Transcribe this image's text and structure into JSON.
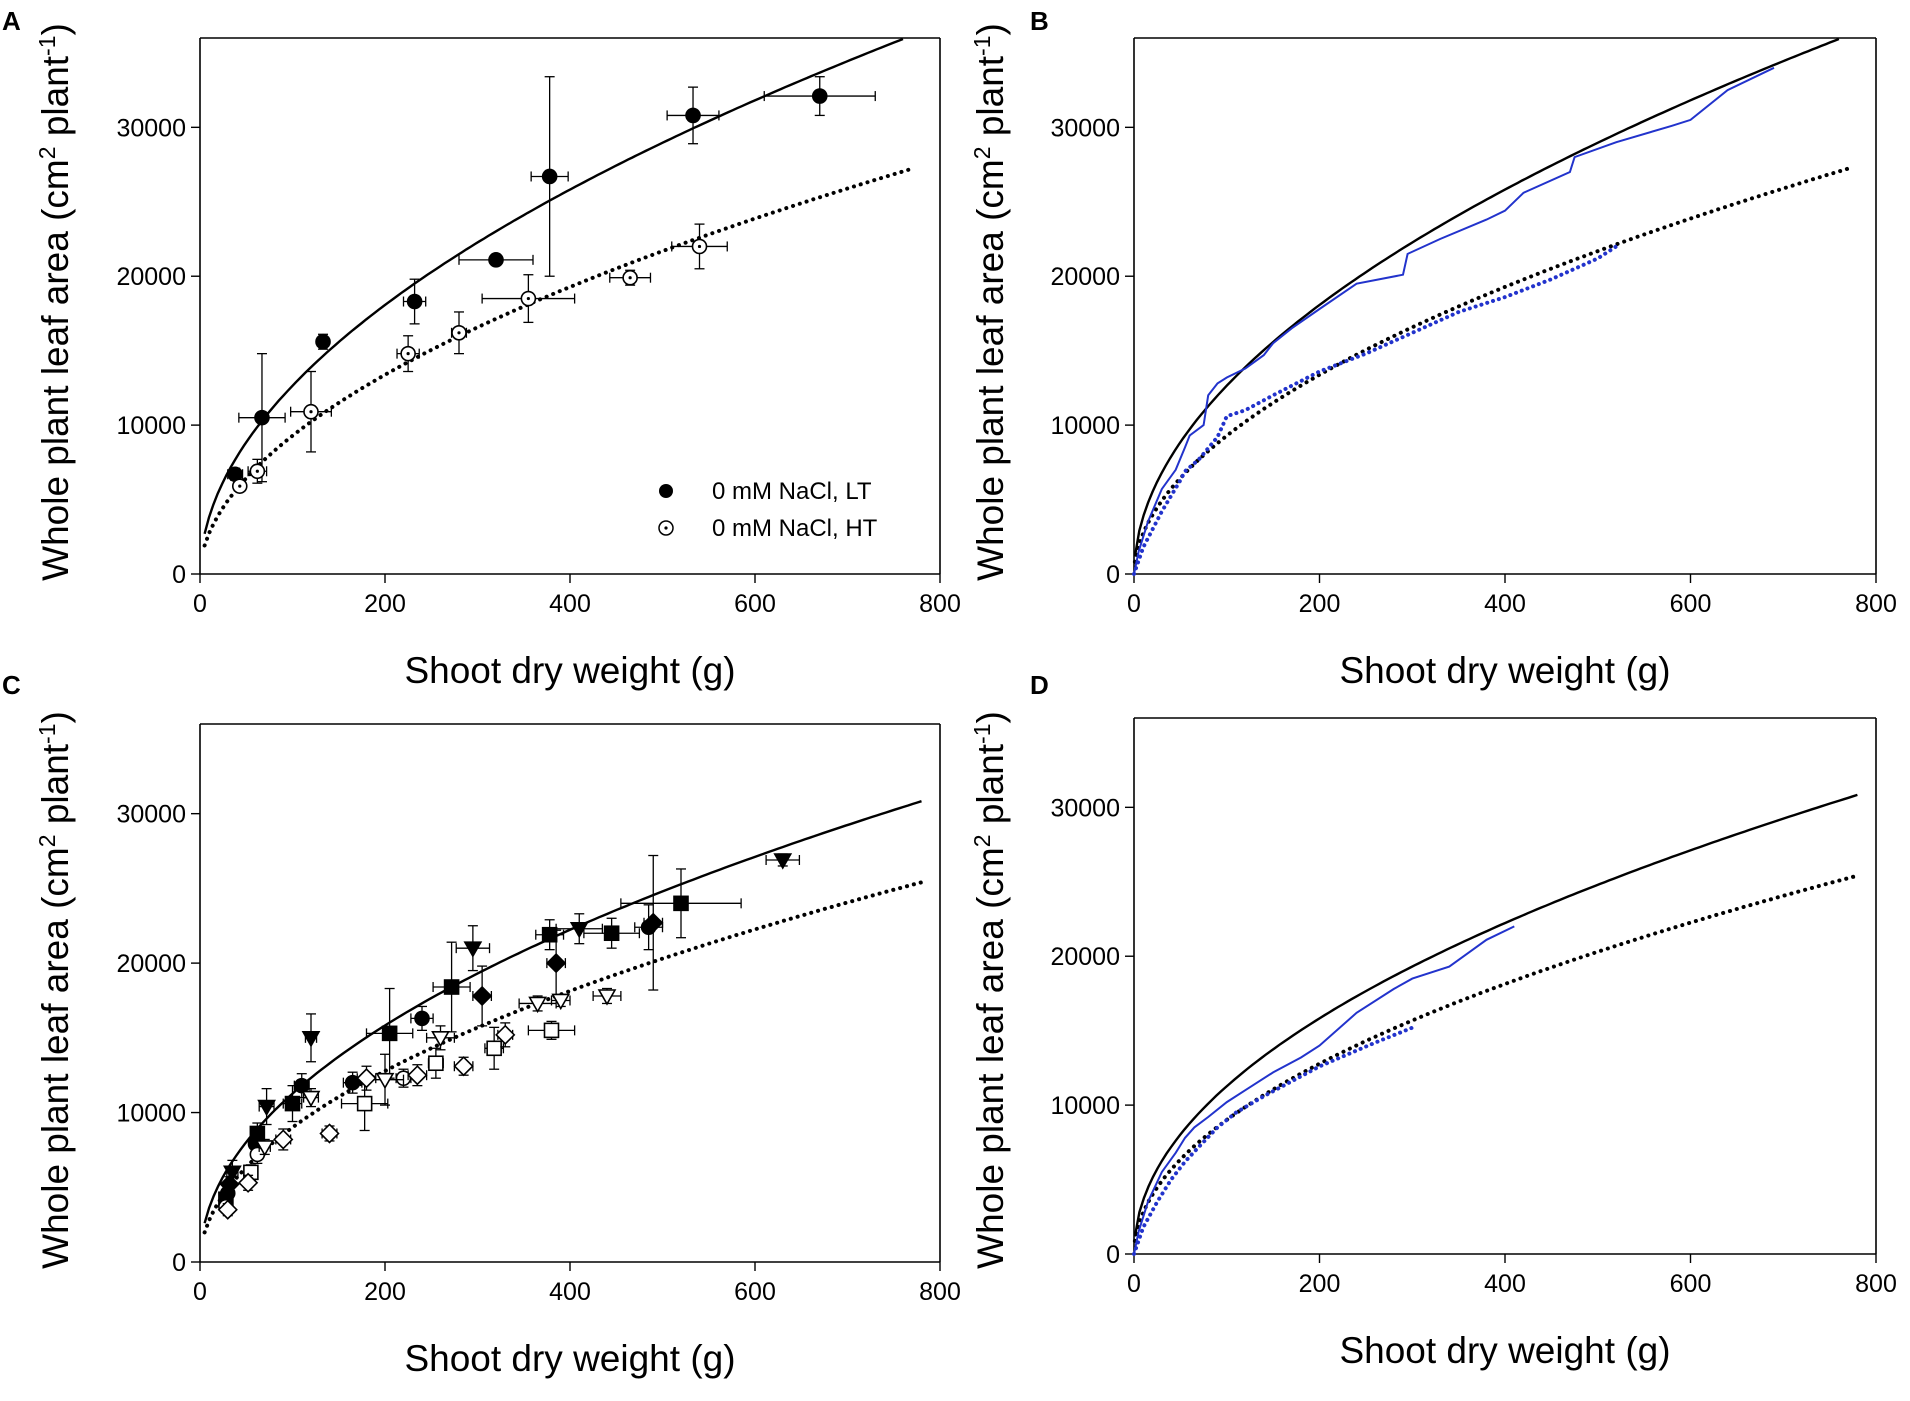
{
  "figure": {
    "panels": [
      "A",
      "B",
      "C",
      "D"
    ],
    "x_axis_label": "Shoot dry weight (g)",
    "y_axis_label_main": "Whole plant leaf area (cm",
    "y_axis_label_sup1": "2",
    "y_axis_label_mid": " plant",
    "y_axis_label_sup2": "-1",
    "y_axis_label_end": ")",
    "colors": {
      "black": "#000000",
      "blue": "#2233cc"
    }
  },
  "chart_data": [
    {
      "panel": "A",
      "type": "scatter",
      "xlabel": "Shoot dry weight (g)",
      "ylabel": "Whole plant leaf area (cm2 plant-1)",
      "xlim": [
        0,
        800
      ],
      "ylim": [
        0,
        36000
      ],
      "xticks": [
        0,
        200,
        400,
        600,
        800
      ],
      "yticks": [
        0,
        10000,
        20000,
        30000
      ],
      "legend_position": "bottom-right",
      "legend": [
        {
          "label": "0 mM NaCl, LT",
          "marker": "filled-circle"
        },
        {
          "label": "0 mM NaCl, HT",
          "marker": "open-circle-dot"
        }
      ],
      "series": [
        {
          "name": "0 mM NaCl, LT",
          "marker": "filled-circle",
          "points": [
            {
              "x": 38,
              "y": 6700,
              "xerr": 8,
              "yerr": 400
            },
            {
              "x": 67,
              "y": 10500,
              "xerr": 25,
              "yerr": 4300
            },
            {
              "x": 133,
              "y": 15600,
              "xerr": 6,
              "yerr": 500
            },
            {
              "x": 232,
              "y": 18300,
              "xerr": 12,
              "yerr": 1500
            },
            {
              "x": 320,
              "y": 21100,
              "xerr": 40,
              "yerr": 300
            },
            {
              "x": 378,
              "y": 26700,
              "xerr": 20,
              "yerr": 6700
            },
            {
              "x": 533,
              "y": 30800,
              "xerr": 28,
              "yerr": 1900
            },
            {
              "x": 670,
              "y": 32100,
              "xerr": 60,
              "yerr": 1300
            }
          ]
        },
        {
          "name": "0 mM NaCl, HT",
          "marker": "open-circle-dot",
          "points": [
            {
              "x": 43,
              "y": 5900,
              "xerr": 6,
              "yerr": 300
            },
            {
              "x": 62,
              "y": 6900,
              "xerr": 10,
              "yerr": 800
            },
            {
              "x": 120,
              "y": 10900,
              "xerr": 22,
              "yerr": 2700
            },
            {
              "x": 225,
              "y": 14800,
              "xerr": 12,
              "yerr": 1200
            },
            {
              "x": 280,
              "y": 16200,
              "xerr": 8,
              "yerr": 1400
            },
            {
              "x": 355,
              "y": 18500,
              "xerr": 50,
              "yerr": 1600
            },
            {
              "x": 465,
              "y": 19900,
              "xerr": 22,
              "yerr": 500
            },
            {
              "x": 540,
              "y": 22000,
              "xerr": 30,
              "yerr": 1500
            }
          ]
        }
      ],
      "curves": [
        {
          "name": "LT fit",
          "style": "solid",
          "color": "black",
          "a": 1180,
          "b": 0.515,
          "x_start": 5,
          "x_end": 760
        },
        {
          "name": "HT fit",
          "style": "dotted",
          "color": "black",
          "a": 820,
          "b": 0.527,
          "x_start": 5,
          "x_end": 770
        }
      ]
    },
    {
      "panel": "B",
      "type": "line",
      "xlabel": "Shoot dry weight (g)",
      "ylabel": "Whole plant leaf area (cm2 plant-1)",
      "xlim": [
        0,
        800
      ],
      "ylim": [
        0,
        36000
      ],
      "xticks": [
        0,
        200,
        400,
        600,
        800
      ],
      "yticks": [
        0,
        10000,
        20000,
        30000
      ],
      "curves": [
        {
          "name": "LT fit",
          "style": "solid",
          "color": "black",
          "a": 1180,
          "b": 0.515,
          "x_start": 1,
          "x_end": 760
        },
        {
          "name": "HT fit",
          "style": "dotted",
          "color": "black",
          "a": 820,
          "b": 0.527,
          "x_start": 1,
          "x_end": 775
        }
      ],
      "traces": [
        {
          "name": "simulated LT",
          "style": "solid",
          "color": "blue",
          "x": [
            0,
            5,
            15,
            30,
            45,
            55,
            60,
            75,
            80,
            90,
            100,
            120,
            140,
            150,
            170,
            200,
            240,
            290,
            295,
            330,
            380,
            400,
            420,
            470,
            475,
            520,
            580,
            600,
            640,
            690
          ],
          "y": [
            0,
            1500,
            3500,
            5700,
            7000,
            8500,
            9300,
            10000,
            12000,
            12800,
            13200,
            13800,
            14700,
            15500,
            16500,
            17800,
            19500,
            20100,
            21500,
            22500,
            23800,
            24400,
            25600,
            27000,
            28000,
            29000,
            30100,
            30500,
            32500,
            34000
          ]
        },
        {
          "name": "simulated HT",
          "style": "dotted",
          "color": "blue",
          "x": [
            0,
            10,
            30,
            50,
            55,
            70,
            90,
            100,
            120,
            150,
            200,
            250,
            300,
            350,
            400,
            450,
            500,
            520
          ],
          "y": [
            0,
            1800,
            4200,
            6300,
            6900,
            7700,
            9200,
            10600,
            11000,
            12000,
            13600,
            14800,
            16200,
            17600,
            18600,
            19800,
            21200,
            22000
          ]
        }
      ]
    },
    {
      "panel": "C",
      "type": "scatter",
      "xlabel": "Shoot dry weight (g)",
      "ylabel": "Whole plant leaf area (cm2 plant-1)",
      "xlim": [
        0,
        800
      ],
      "ylim": [
        0,
        36000
      ],
      "xticks": [
        0,
        200,
        400,
        600,
        800
      ],
      "yticks": [
        0,
        10000,
        20000,
        30000
      ],
      "series": [
        {
          "name": "filled circles",
          "marker": "filled-circle",
          "points": [
            {
              "x": 30,
              "y": 4600,
              "xerr": 4,
              "yerr": 500
            },
            {
              "x": 60,
              "y": 7900,
              "xerr": 5,
              "yerr": 600
            },
            {
              "x": 110,
              "y": 11800,
              "xerr": 8,
              "yerr": 800
            },
            {
              "x": 165,
              "y": 12000,
              "xerr": 10,
              "yerr": 700
            },
            {
              "x": 240,
              "y": 16300,
              "xerr": 12,
              "yerr": 800
            },
            {
              "x": 485,
              "y": 22400,
              "xerr": 15,
              "yerr": 1500
            }
          ]
        },
        {
          "name": "filled squares",
          "marker": "filled-square",
          "points": [
            {
              "x": 28,
              "y": 4200,
              "xerr": 4,
              "yerr": 500
            },
            {
              "x": 62,
              "y": 8600,
              "xerr": 6,
              "yerr": 700
            },
            {
              "x": 100,
              "y": 10600,
              "xerr": 10,
              "yerr": 1200
            },
            {
              "x": 205,
              "y": 15300,
              "xerr": 25,
              "yerr": 3000
            },
            {
              "x": 272,
              "y": 18400,
              "xerr": 20,
              "yerr": 3000
            },
            {
              "x": 378,
              "y": 21900,
              "xerr": 15,
              "yerr": 1000
            },
            {
              "x": 445,
              "y": 22000,
              "xerr": 30,
              "yerr": 1000
            },
            {
              "x": 520,
              "y": 24000,
              "xerr": 65,
              "yerr": 2300
            }
          ]
        },
        {
          "name": "filled triangles down",
          "marker": "filled-triangle-down",
          "points": [
            {
              "x": 35,
              "y": 6000,
              "xerr": 6,
              "yerr": 800
            },
            {
              "x": 72,
              "y": 10400,
              "xerr": 8,
              "yerr": 1200
            },
            {
              "x": 120,
              "y": 15000,
              "xerr": 6,
              "yerr": 1600
            },
            {
              "x": 295,
              "y": 21000,
              "xerr": 18,
              "yerr": 1500
            },
            {
              "x": 410,
              "y": 22300,
              "xerr": 25,
              "yerr": 1000
            },
            {
              "x": 630,
              "y": 26900,
              "xerr": 18,
              "yerr": 400
            }
          ]
        },
        {
          "name": "filled diamonds",
          "marker": "filled-diamond",
          "points": [
            {
              "x": 32,
              "y": 5200,
              "xerr": 4,
              "yerr": 500
            },
            {
              "x": 305,
              "y": 17800,
              "xerr": 10,
              "yerr": 2000
            },
            {
              "x": 385,
              "y": 20000,
              "xerr": 10,
              "yerr": 2200
            },
            {
              "x": 490,
              "y": 22700,
              "xerr": 10,
              "yerr": 4500
            }
          ]
        },
        {
          "name": "open circles",
          "marker": "open-circle",
          "points": [
            {
              "x": 28,
              "y": 3700,
              "xerr": 4,
              "yerr": 400
            },
            {
              "x": 62,
              "y": 7200,
              "xerr": 6,
              "yerr": 600
            },
            {
              "x": 220,
              "y": 12300,
              "xerr": 8,
              "yerr": 600
            }
          ]
        },
        {
          "name": "open squares",
          "marker": "open-square",
          "points": [
            {
              "x": 55,
              "y": 6000,
              "xerr": 5,
              "yerr": 500
            },
            {
              "x": 178,
              "y": 10600,
              "xerr": 25,
              "yerr": 1800
            },
            {
              "x": 255,
              "y": 13300,
              "xerr": 8,
              "yerr": 1000
            },
            {
              "x": 318,
              "y": 14300,
              "xerr": 10,
              "yerr": 1400
            },
            {
              "x": 380,
              "y": 15500,
              "xerr": 25,
              "yerr": 600
            }
          ]
        },
        {
          "name": "open triangles down",
          "marker": "open-triangle-down",
          "points": [
            {
              "x": 70,
              "y": 7700,
              "xerr": 6,
              "yerr": 500
            },
            {
              "x": 120,
              "y": 11000,
              "xerr": 8,
              "yerr": 600
            },
            {
              "x": 200,
              "y": 12200,
              "xerr": 20,
              "yerr": 1700
            },
            {
              "x": 260,
              "y": 15000,
              "xerr": 15,
              "yerr": 800
            },
            {
              "x": 365,
              "y": 17300,
              "xerr": 20,
              "yerr": 500
            },
            {
              "x": 390,
              "y": 17500,
              "xerr": 10,
              "yerr": 400
            },
            {
              "x": 440,
              "y": 17800,
              "xerr": 15,
              "yerr": 500
            }
          ]
        },
        {
          "name": "open diamonds",
          "marker": "open-diamond",
          "points": [
            {
              "x": 30,
              "y": 3500,
              "xerr": 4,
              "yerr": 400
            },
            {
              "x": 52,
              "y": 5300,
              "xerr": 5,
              "yerr": 500
            },
            {
              "x": 90,
              "y": 8200,
              "xerr": 8,
              "yerr": 700
            },
            {
              "x": 140,
              "y": 8600,
              "xerr": 8,
              "yerr": 500
            },
            {
              "x": 180,
              "y": 12300,
              "xerr": 10,
              "yerr": 800
            },
            {
              "x": 235,
              "y": 12500,
              "xerr": 10,
              "yerr": 700
            },
            {
              "x": 285,
              "y": 13100,
              "xerr": 10,
              "yerr": 600
            },
            {
              "x": 330,
              "y": 15200,
              "xerr": 8,
              "yerr": 800
            }
          ]
        }
      ],
      "curves": [
        {
          "name": "filled fit",
          "style": "solid",
          "color": "black",
          "a": 1180,
          "b": 0.49,
          "x_start": 5,
          "x_end": 780
        },
        {
          "name": "open fit",
          "style": "dotted",
          "color": "black",
          "a": 880,
          "b": 0.505,
          "x_start": 5,
          "x_end": 780
        }
      ]
    },
    {
      "panel": "D",
      "type": "line",
      "xlabel": "Shoot dry weight (g)",
      "ylabel": "Whole plant leaf area (cm2 plant-1)",
      "xlim": [
        0,
        800
      ],
      "ylim": [
        0,
        36000
      ],
      "xticks": [
        0,
        200,
        400,
        600,
        800
      ],
      "yticks": [
        0,
        10000,
        20000,
        30000
      ],
      "curves": [
        {
          "name": "filled fit",
          "style": "solid",
          "color": "black",
          "a": 1180,
          "b": 0.49,
          "x_start": 1,
          "x_end": 780
        },
        {
          "name": "open fit",
          "style": "dotted",
          "color": "black",
          "a": 880,
          "b": 0.505,
          "x_start": 1,
          "x_end": 780
        }
      ],
      "traces": [
        {
          "name": "simulated filled",
          "style": "solid",
          "color": "blue",
          "x": [
            0,
            5,
            15,
            30,
            45,
            55,
            65,
            80,
            100,
            120,
            150,
            180,
            200,
            240,
            280,
            300,
            340,
            360,
            380,
            410
          ],
          "y": [
            0,
            1500,
            3500,
            5500,
            6800,
            7800,
            8500,
            9200,
            10200,
            11000,
            12200,
            13200,
            14000,
            16200,
            17800,
            18500,
            19300,
            20200,
            21100,
            22000
          ]
        },
        {
          "name": "simulated open",
          "style": "dotted",
          "color": "blue",
          "x": [
            0,
            10,
            25,
            40,
            55,
            70,
            90,
            110,
            140,
            170,
            200,
            230,
            260,
            300
          ],
          "y": [
            0,
            1800,
            3500,
            5000,
            6200,
            7200,
            8500,
            9500,
            10600,
            11600,
            12600,
            13400,
            14200,
            15200
          ]
        }
      ]
    }
  ]
}
